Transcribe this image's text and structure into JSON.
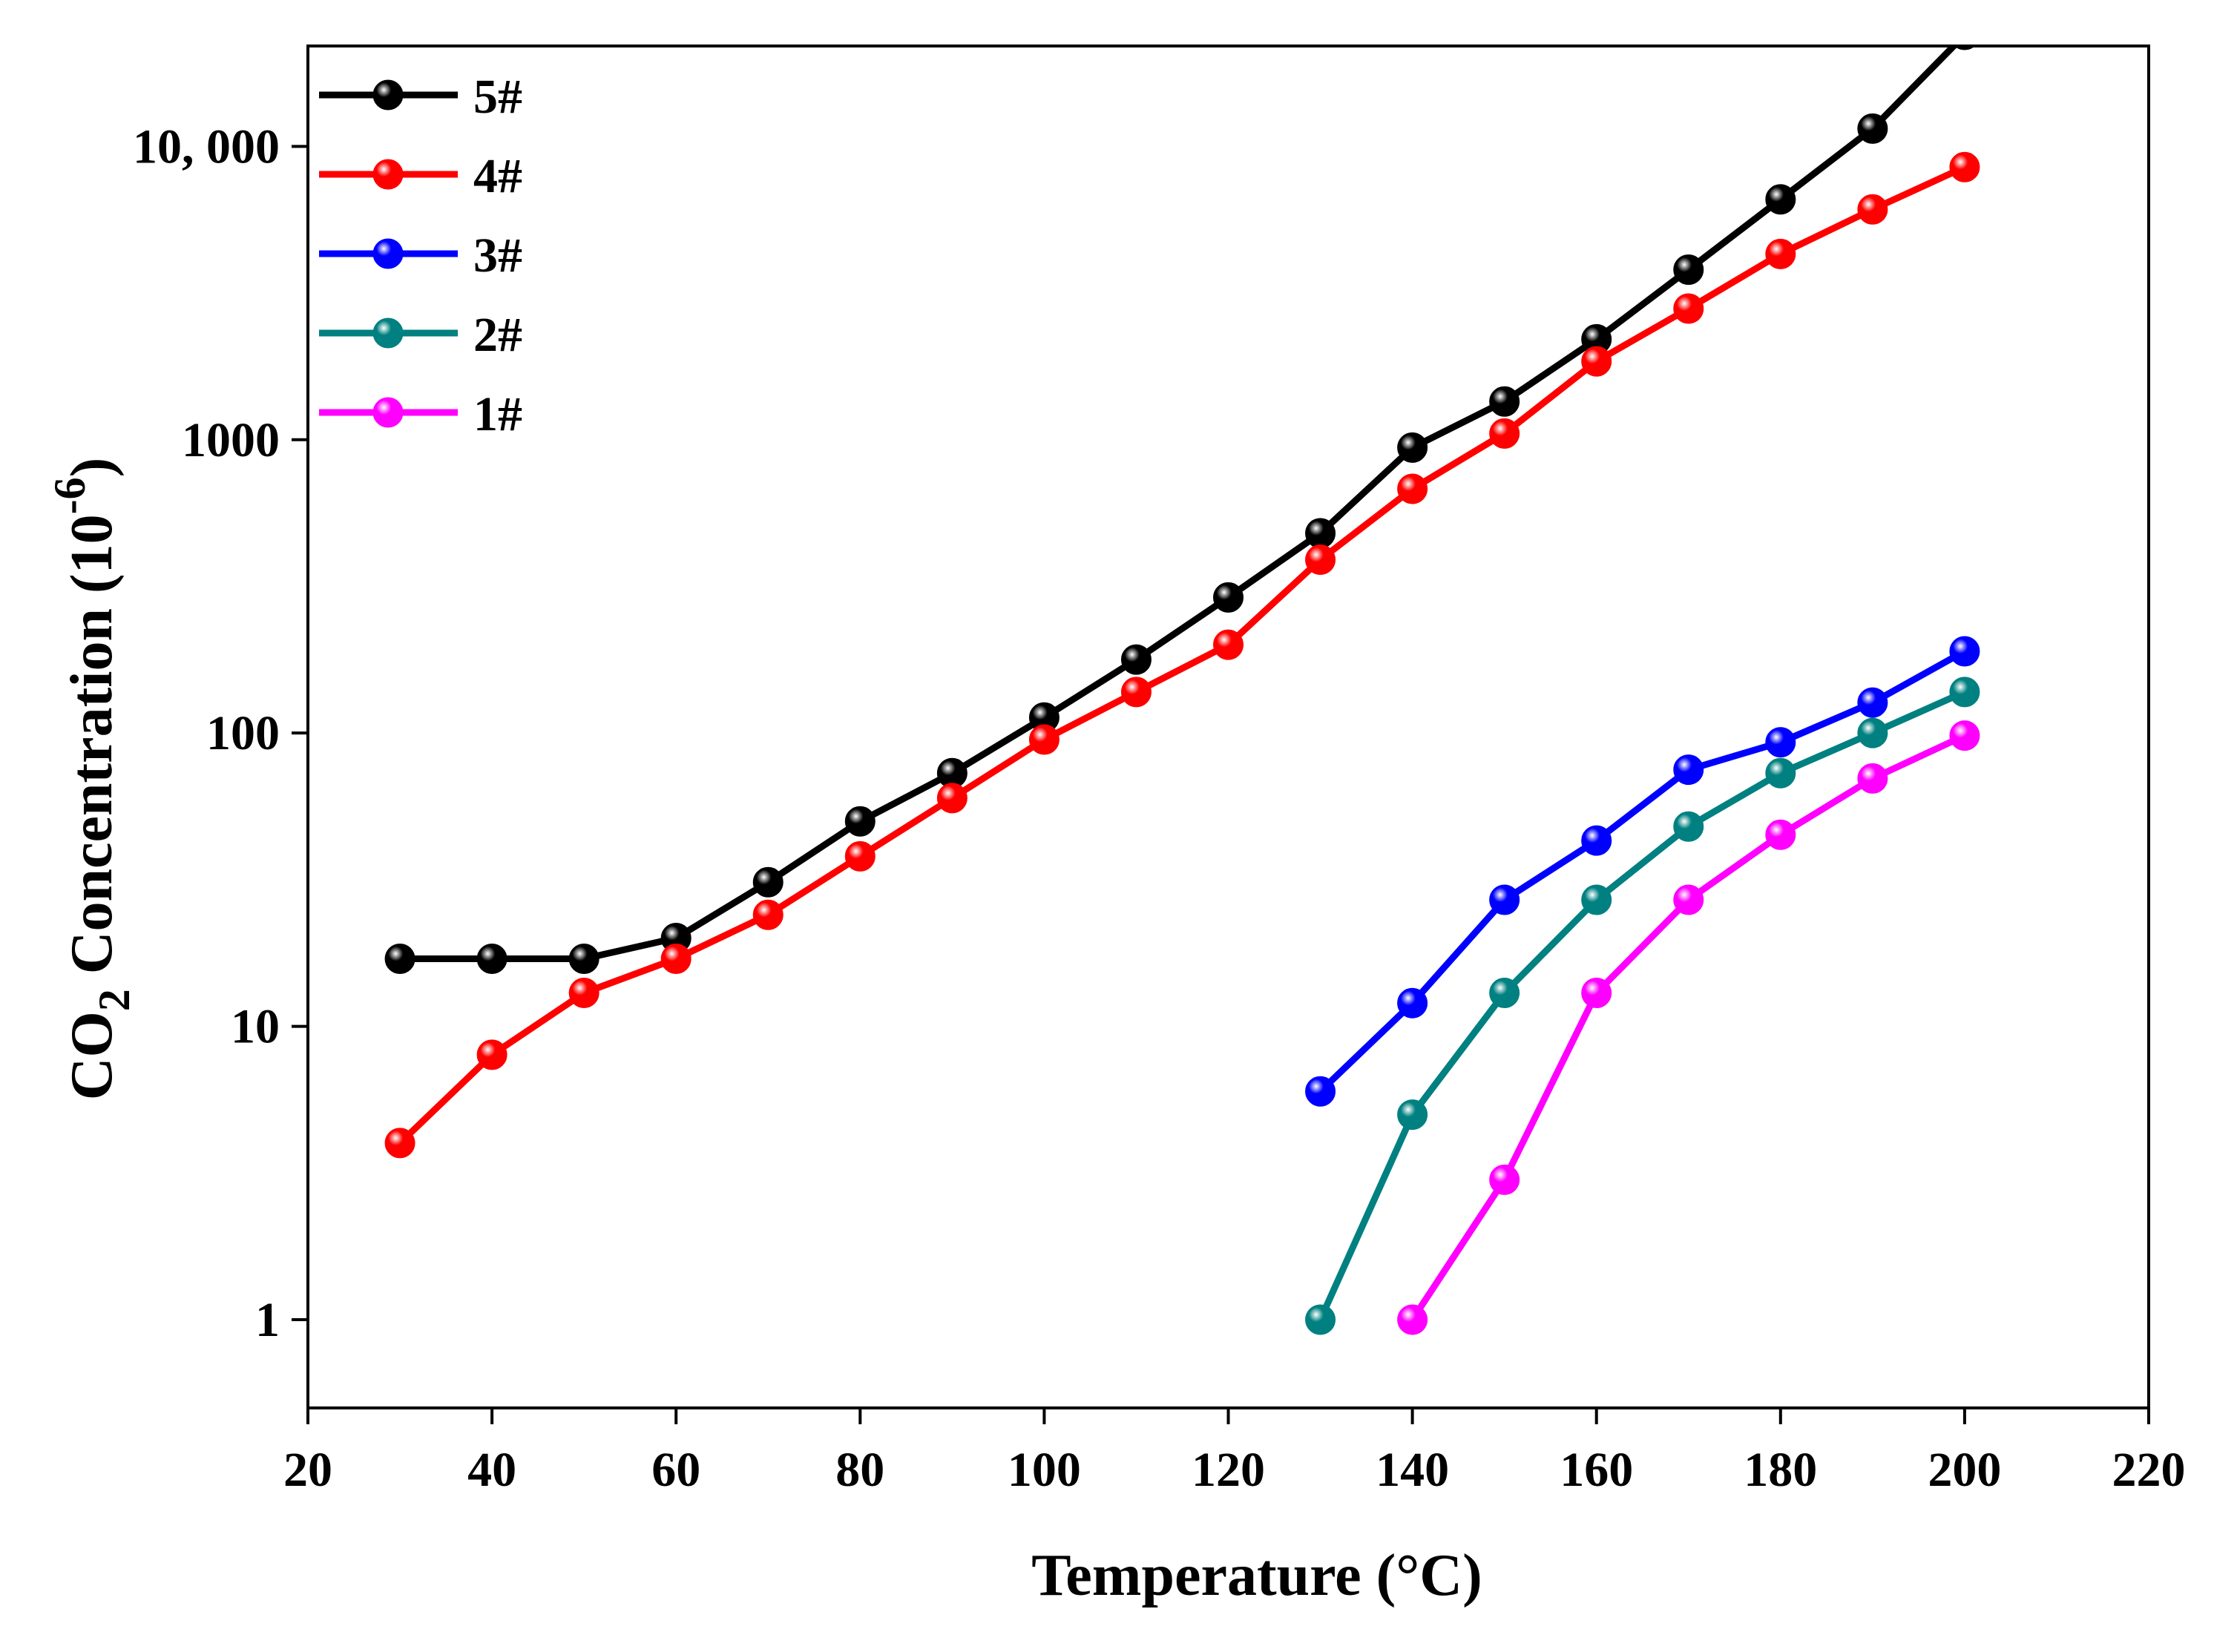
{
  "chart_data": {
    "type": "line",
    "title": "",
    "xlabel": "Temperature (°C)",
    "ylabel": {
      "prefix": "CO",
      "subscript": "2",
      "middle": " Concentration (10",
      "superscript": "-6",
      "suffix": ")"
    },
    "x_scale": "linear",
    "y_scale": "log",
    "xlim": [
      20,
      220
    ],
    "ylim": [
      0.5,
      22000
    ],
    "x_ticks": [
      20,
      40,
      60,
      80,
      100,
      120,
      140,
      160,
      180,
      200,
      220
    ],
    "x_tick_labels": [
      "20",
      "40",
      "60",
      "80",
      "100",
      "120",
      "140",
      "160",
      "180",
      "200",
      "220"
    ],
    "y_ticks": [
      1,
      10,
      100,
      1000,
      10000
    ],
    "y_tick_labels": [
      "1",
      "10",
      "100",
      "1000",
      "10, 000"
    ],
    "grid": false,
    "legend_position": "top-left",
    "series": [
      {
        "name": "5#",
        "color": "#000000",
        "x": [
          30,
          40,
          50,
          60,
          70,
          80,
          90,
          100,
          110,
          120,
          130,
          140,
          150,
          160,
          170,
          180,
          190,
          200
        ],
        "values": [
          17,
          17,
          17,
          20,
          31,
          50,
          73,
          113,
          178,
          290,
          480,
          940,
          1350,
          2200,
          3800,
          6600,
          11500,
          24000
        ]
      },
      {
        "name": "4#",
        "color": "#ff0000",
        "x": [
          30,
          40,
          50,
          60,
          70,
          80,
          90,
          100,
          110,
          120,
          130,
          140,
          150,
          160,
          170,
          180,
          190,
          200
        ],
        "values": [
          4,
          8,
          13,
          17,
          24,
          38,
          60,
          95,
          138,
          200,
          390,
          680,
          1050,
          1850,
          2800,
          4300,
          6100,
          8500
        ]
      },
      {
        "name": "3#",
        "color": "#0000ff",
        "x": [
          130,
          140,
          150,
          160,
          170,
          180,
          190,
          200
        ],
        "values": [
          6,
          12,
          27,
          43,
          75,
          93,
          127,
          190
        ]
      },
      {
        "name": "2#",
        "color": "#008080",
        "x": [
          130,
          140,
          150,
          160,
          170,
          180,
          190,
          200
        ],
        "values": [
          1,
          5,
          13,
          27,
          48,
          73,
          100,
          138
        ]
      },
      {
        "name": "1#",
        "color": "#ff00ff",
        "x": [
          140,
          150,
          160,
          170,
          180,
          190,
          200
        ],
        "values": [
          1,
          3,
          13,
          27,
          45,
          70,
          98
        ]
      }
    ]
  }
}
